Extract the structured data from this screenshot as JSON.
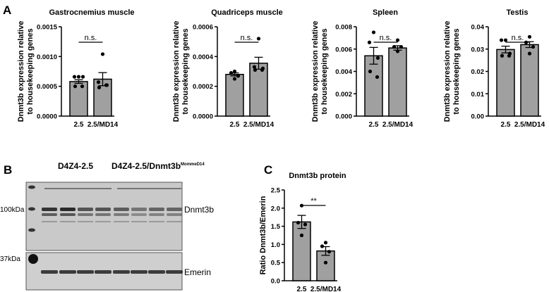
{
  "panel_labels": {
    "a": "A",
    "b": "B",
    "c": "C"
  },
  "bar_color": "#a0a0a0",
  "chart_data": [
    {
      "type": "bar",
      "panel": "A",
      "title": "Gastrocnemius muscle",
      "ylabel": [
        "Dnmt3b expression relative",
        "to housekeeping genes"
      ],
      "categories": [
        "2.5",
        "2.5/MD14"
      ],
      "values": [
        0.00058,
        0.00062
      ],
      "sem": [
        3e-05,
        0.00011
      ],
      "points": [
        [
          0.00066,
          0.00066,
          0.00066,
          0.0005,
          0.0005
        ],
        [
          0.00104,
          0.00057,
          0.00052,
          0.00048,
          0.00052
        ]
      ],
      "ylim": [
        0,
        0.0015
      ],
      "yticks": [
        "0.0000",
        "0.0005",
        "0.0010",
        "0.0015"
      ],
      "significance": "n.s."
    },
    {
      "type": "bar",
      "panel": "A",
      "title": "Quadriceps muscle",
      "ylabel": [
        "Dnmt3b expression relative",
        "to housekeeping genes"
      ],
      "categories": [
        "2.5",
        "2.5/MD14"
      ],
      "values": [
        0.00028,
        0.000355
      ],
      "sem": [
        1e-05,
        4e-05
      ],
      "points": [
        [
          0.0003,
          0.00029,
          0.00027,
          0.00025
        ],
        [
          0.00052,
          0.00033,
          0.00032,
          0.00031,
          0.00031
        ]
      ],
      "ylim": [
        0,
        0.0006
      ],
      "yticks": [
        "0.0000",
        "0.0002",
        "0.0004",
        "0.0006"
      ],
      "significance": "n.s."
    },
    {
      "type": "bar",
      "panel": "A",
      "title": "Spleen",
      "ylabel": [
        "Dnmt3b expression relative",
        "to housekeeping genes"
      ],
      "categories": [
        "2.5",
        "2.5/MD14"
      ],
      "values": [
        0.0054,
        0.0061
      ],
      "sem": [
        0.00075,
        0.0002
      ],
      "points": [
        [
          0.0075,
          0.0066,
          0.0052,
          0.004,
          0.0035
        ],
        [
          0.0068,
          0.0062,
          0.0062,
          0.0058
        ]
      ],
      "ylim": [
        0,
        0.008
      ],
      "yticks": [
        "0.000",
        "0.002",
        "0.004",
        "0.006",
        "0.008"
      ],
      "significance": "n.s."
    },
    {
      "type": "bar",
      "panel": "A",
      "title": "Testis",
      "ylabel": [
        "Dnmt3b expression relative",
        "to housekeeping genes"
      ],
      "categories": [
        "2.5",
        "2.5/MD14"
      ],
      "values": [
        0.0298,
        0.032
      ],
      "sem": [
        0.0015,
        0.0013
      ],
      "points": [
        [
          0.034,
          0.034,
          0.028,
          0.027,
          0.027
        ],
        [
          0.0355,
          0.033,
          0.031,
          0.028
        ]
      ],
      "ylim": [
        0,
        0.04
      ],
      "yticks": [
        "0.00",
        "0.01",
        "0.02",
        "0.03",
        "0.04"
      ],
      "significance": "n.s."
    },
    {
      "type": "bar",
      "panel": "C",
      "title": "Dnmt3b protein",
      "ylabel": [
        "Ratio Dnmt3b/Emerin"
      ],
      "categories": [
        "2.5",
        "2.5/MD14"
      ],
      "values": [
        1.62,
        0.82
      ],
      "sem": [
        0.18,
        0.12
      ],
      "points": [
        [
          2.07,
          1.6,
          1.55,
          1.25
        ],
        [
          1.05,
          0.95,
          0.8,
          0.5
        ]
      ],
      "ylim": [
        0,
        2.5
      ],
      "yticks": [
        "0.0",
        "0.5",
        "1.0",
        "1.5",
        "2.0",
        "2.5"
      ],
      "significance": "**"
    }
  ],
  "blot": {
    "group1": "D4Z4-2.5",
    "group2": "D4Z4-2.5/Dnmt3b",
    "group2_superscript": "MommeD14",
    "marker_top": "100kDa",
    "marker_bottom": "37kDa",
    "band_top": "Dnmt3b",
    "band_bottom": "Emerin"
  }
}
